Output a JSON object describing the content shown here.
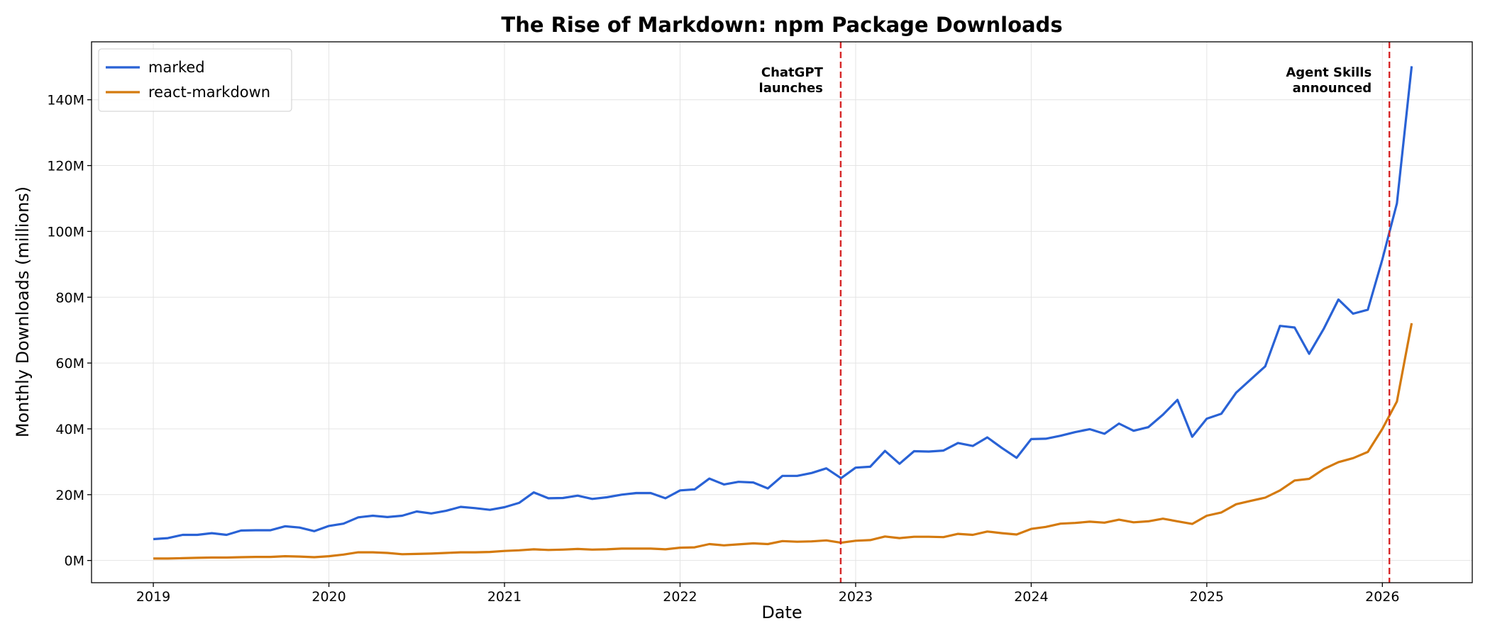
{
  "chart_data": {
    "type": "line",
    "title": "The Rise of Markdown: npm Package Downloads",
    "xlabel": "Date",
    "ylabel": "Monthly Downloads (millions)",
    "x": [
      2019,
      2019.083,
      2019.167,
      2019.25,
      2019.333,
      2019.417,
      2019.5,
      2019.583,
      2019.667,
      2019.75,
      2019.833,
      2019.917,
      2020,
      2020.083,
      2020.167,
      2020.25,
      2020.333,
      2020.417,
      2020.5,
      2020.583,
      2020.667,
      2020.75,
      2020.833,
      2020.917,
      2021,
      2021.083,
      2021.167,
      2021.25,
      2021.333,
      2021.417,
      2021.5,
      2021.583,
      2021.667,
      2021.75,
      2021.833,
      2021.917,
      2022,
      2022.083,
      2022.167,
      2022.25,
      2022.333,
      2022.417,
      2022.5,
      2022.583,
      2022.667,
      2022.75,
      2022.833,
      2022.917,
      2023,
      2023.083,
      2023.167,
      2023.25,
      2023.333,
      2023.417,
      2023.5,
      2023.583,
      2023.667,
      2023.75,
      2023.833,
      2023.917,
      2024,
      2024.083,
      2024.167,
      2024.25,
      2024.333,
      2024.417,
      2024.5,
      2024.583,
      2024.667,
      2024.75,
      2024.833,
      2024.917,
      2025,
      2025.083,
      2025.167,
      2025.25,
      2025.333,
      2025.417,
      2025.5,
      2025.583,
      2025.667,
      2025.75,
      2025.833,
      2025.917,
      2026,
      2026.083,
      2026.167
    ],
    "series": [
      {
        "name": "marked",
        "color": "#2962d5",
        "values": [
          6.5,
          6.8,
          7.8,
          7.8,
          8.3,
          7.8,
          9.1,
          9.2,
          9.2,
          10.4,
          10.0,
          8.9,
          10.5,
          11.2,
          13.1,
          13.6,
          13.2,
          13.6,
          14.9,
          14.3,
          15.1,
          16.3,
          15.9,
          15.4,
          16.2,
          17.5,
          20.7,
          18.9,
          19.0,
          19.7,
          18.7,
          19.2,
          20.0,
          20.5,
          20.5,
          18.9,
          21.3,
          21.6,
          24.9,
          23.1,
          23.9,
          23.7,
          21.9,
          25.7,
          25.7,
          26.6,
          28.0,
          25.0,
          28.2,
          28.5,
          33.3,
          29.4,
          33.2,
          33.1,
          33.4,
          35.7,
          34.8,
          37.4,
          34.2,
          31.2,
          36.9,
          37.0,
          37.9,
          39.0,
          39.9,
          38.5,
          41.6,
          39.4,
          40.5,
          44.3,
          48.8,
          37.6,
          43.1,
          44.6,
          51.0,
          55.0,
          59.0,
          71.3,
          70.8,
          62.8,
          70.5,
          79.3,
          75.0,
          76.2,
          91.5,
          108.5,
          150.2
        ]
      },
      {
        "name": "react-markdown",
        "color": "#d47a0e",
        "values": [
          0.6,
          0.6,
          0.7,
          0.8,
          0.9,
          0.9,
          1.0,
          1.1,
          1.1,
          1.3,
          1.2,
          1.0,
          1.3,
          1.8,
          2.5,
          2.5,
          2.3,
          1.9,
          2.0,
          2.1,
          2.3,
          2.5,
          2.5,
          2.6,
          2.9,
          3.1,
          3.4,
          3.2,
          3.3,
          3.5,
          3.3,
          3.4,
          3.6,
          3.6,
          3.6,
          3.4,
          3.9,
          4.0,
          5.0,
          4.6,
          4.9,
          5.2,
          5.0,
          5.9,
          5.7,
          5.8,
          6.1,
          5.4,
          6.0,
          6.2,
          7.3,
          6.8,
          7.2,
          7.2,
          7.1,
          8.1,
          7.8,
          8.8,
          8.3,
          7.9,
          9.6,
          10.2,
          11.2,
          11.4,
          11.8,
          11.5,
          12.4,
          11.6,
          11.9,
          12.7,
          11.9,
          11.1,
          13.6,
          14.6,
          17.1,
          18.1,
          19.1,
          21.3,
          24.3,
          24.8,
          27.8,
          29.9,
          31.1,
          33.0,
          40.0,
          48.3,
          72.1
        ]
      }
    ],
    "xlim": [
      2018.648,
      2026.512
    ],
    "xticks": [
      2019,
      2020,
      2021,
      2022,
      2023,
      2024,
      2025,
      2026
    ],
    "ylim": [
      -6.75,
      157.6
    ],
    "yticks": [
      {
        "value": 0,
        "label": "0M"
      },
      {
        "value": 20,
        "label": "20M"
      },
      {
        "value": 40,
        "label": "40M"
      },
      {
        "value": 60,
        "label": "60M"
      },
      {
        "value": 80,
        "label": "80M"
      },
      {
        "value": 100,
        "label": "100M"
      },
      {
        "value": 120,
        "label": "120M"
      },
      {
        "value": 140,
        "label": "140M"
      }
    ],
    "grid": true,
    "legend": "upper left",
    "annotations": [
      {
        "x": 2022.915,
        "lines": [
          "ChatGPT",
          "launches"
        ],
        "color": "#d62728"
      },
      {
        "x": 2026.04,
        "lines": [
          "Agent Skills",
          "announced"
        ],
        "color": "#d62728"
      }
    ]
  }
}
